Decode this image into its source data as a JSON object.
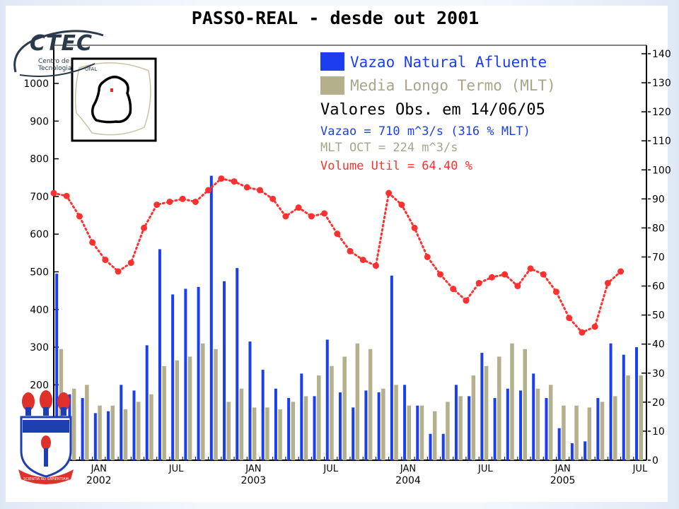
{
  "slide": {
    "logo_ctec": {
      "name": "CTEC",
      "subtitle": "Centro de Tecnologia",
      "org": "UFAL"
    },
    "logo_university_motto": "SCIENTIA AD SAPIENTIAM"
  },
  "chart_data": {
    "type": "bar",
    "title": "PASSO-REAL - desde out 2001",
    "legend": [
      {
        "label": "Vazao Natural Afluente",
        "color": "#1b3ff0"
      },
      {
        "label": "Media Longo Termo (MLT)",
        "color": "#b3b08b"
      }
    ],
    "info": {
      "heading": "Valores Obs. em 14/06/05",
      "vazao": "Vazao = 710 m^3/s (316 % MLT)",
      "mlt": "MLT OCT = 224 m^3/s",
      "volume": "Volume Util = 64.40 %"
    },
    "info_colors": {
      "heading": "#000000",
      "vazao": "#1b3ff0",
      "mlt": "#a8a58a",
      "volume": "#ff3030"
    },
    "y_left": {
      "ticks": [
        "0",
        "100",
        "200",
        "300",
        "400",
        "500",
        "600",
        "700",
        "800",
        "900",
        "1000"
      ],
      "ylim": [
        0,
        1000
      ]
    },
    "y_right": {
      "ticks": [
        "0",
        "10",
        "20",
        "30",
        "40",
        "50",
        "60",
        "70",
        "80",
        "90",
        "100",
        "110",
        "120",
        "130",
        "140"
      ],
      "ylim": [
        0,
        140
      ]
    },
    "x_ticks": [
      {
        "month": "JAN",
        "year": "2002",
        "index": 3
      },
      {
        "month": "JUL",
        "year": "",
        "index": 9
      },
      {
        "month": "JAN",
        "year": "2003",
        "index": 15
      },
      {
        "month": "JUL",
        "year": "",
        "index": 21
      },
      {
        "month": "JAN",
        "year": "2004",
        "index": 27
      },
      {
        "month": "JUL",
        "year": "",
        "index": 33
      },
      {
        "month": "JAN",
        "year": "2005",
        "index": 39
      },
      {
        "month": "JUL",
        "year": "",
        "index": 45
      }
    ],
    "series": [
      {
        "name": "Vazao Natural Afluente",
        "values": [
          495,
          175,
          165,
          125,
          130,
          200,
          185,
          305,
          560,
          440,
          455,
          460,
          755,
          475,
          510,
          315,
          240,
          190,
          165,
          230,
          170,
          320,
          180,
          140,
          185,
          180,
          490,
          200,
          145,
          70,
          70,
          200,
          170,
          285,
          165,
          190,
          185,
          230,
          165,
          85,
          45,
          50,
          165,
          310,
          280,
          300
        ]
      },
      {
        "name": "Media Longo Termo (MLT)",
        "values": [
          295,
          190,
          200,
          145,
          145,
          135,
          155,
          175,
          250,
          265,
          275,
          310,
          295,
          155,
          190,
          140,
          140,
          135,
          155,
          170,
          225,
          250,
          275,
          310,
          295,
          190,
          200,
          145,
          145,
          130,
          155,
          170,
          225,
          250,
          275,
          310,
          295,
          190,
          200,
          145,
          145,
          140,
          155,
          170,
          225,
          225
        ]
      },
      {
        "name": "Volume Util (%)",
        "axis": "right",
        "values": [
          92,
          91,
          84,
          75,
          69,
          65,
          68,
          80,
          88,
          89,
          90,
          89,
          93,
          97,
          96,
          94,
          93,
          90,
          84,
          87,
          84,
          85,
          78,
          72,
          69,
          67,
          92,
          88,
          80,
          70,
          64,
          59,
          55,
          61,
          63,
          64,
          60,
          66,
          64,
          58,
          49,
          44,
          46,
          61,
          65
        ]
      }
    ]
  }
}
